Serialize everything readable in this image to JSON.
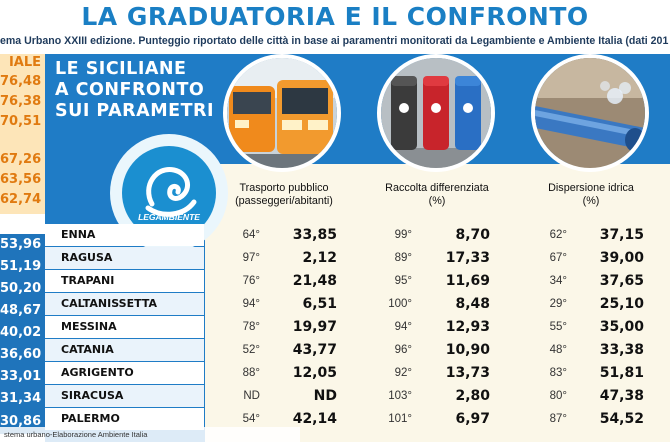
{
  "header": {
    "title": "LA GRADUATORIA E IL CONFRONTO",
    "subtitle": "ema Urbano XXIII edizione. Punteggio riportato delle città in base ai paramentri monitorati da Legambiente e Ambiente Italia (dati 201"
  },
  "left_column": {
    "header": "IALE",
    "top_values": [
      "76,48",
      "76,38",
      "70,51",
      "",
      "67,26",
      "63,56",
      "62,74"
    ],
    "bottom_values": [
      "53,96",
      "51,19",
      "50,20",
      "48,67",
      "40,02",
      "36,60",
      "33,01",
      "31,34",
      "30,86"
    ]
  },
  "panel": {
    "title_lines": [
      "LE SICILIANE",
      "A CONFRONTO",
      "SUI PARAMETRI"
    ],
    "logo_text": "LEGAMBIENTE"
  },
  "columns": [
    {
      "header_line1": "Trasporto pubblico",
      "header_line2": "(passeggeri/abitanti)",
      "photo": "bus-icon"
    },
    {
      "header_line1": "Raccolta differenziata",
      "header_line2": "(%)",
      "photo": "recycle-bins-icon"
    },
    {
      "header_line1": "Dispersione idrica",
      "header_line2": "(%)",
      "photo": "water-pipe-icon"
    }
  ],
  "rows": [
    {
      "city": "ENNA",
      "cells": [
        {
          "rank": "64°",
          "value": "33,85"
        },
        {
          "rank": "99°",
          "value": "8,70"
        },
        {
          "rank": "62°",
          "value": "37,15"
        }
      ]
    },
    {
      "city": "RAGUSA",
      "cells": [
        {
          "rank": "97°",
          "value": "2,12"
        },
        {
          "rank": "89°",
          "value": "17,33"
        },
        {
          "rank": "67°",
          "value": "39,00"
        }
      ]
    },
    {
      "city": "TRAPANI",
      "cells": [
        {
          "rank": "76°",
          "value": "21,48"
        },
        {
          "rank": "95°",
          "value": "11,69"
        },
        {
          "rank": "34°",
          "value": "37,65"
        }
      ]
    },
    {
      "city": "CALTANISSETTA",
      "cells": [
        {
          "rank": "94°",
          "value": "6,51"
        },
        {
          "rank": "100°",
          "value": "8,48"
        },
        {
          "rank": "29°",
          "value": "25,10"
        }
      ]
    },
    {
      "city": "MESSINA",
      "cells": [
        {
          "rank": "78°",
          "value": "19,97"
        },
        {
          "rank": "94°",
          "value": "12,93"
        },
        {
          "rank": "55°",
          "value": "35,00"
        }
      ]
    },
    {
      "city": "CATANIA",
      "cells": [
        {
          "rank": "52°",
          "value": "43,77"
        },
        {
          "rank": "96°",
          "value": "10,90"
        },
        {
          "rank": "48°",
          "value": "33,38"
        }
      ]
    },
    {
      "city": "AGRIGENTO",
      "cells": [
        {
          "rank": "88°",
          "value": "12,05"
        },
        {
          "rank": "92°",
          "value": "13,73"
        },
        {
          "rank": "83°",
          "value": "51,81"
        }
      ]
    },
    {
      "city": "SIRACUSA",
      "cells": [
        {
          "rank": "ND",
          "value": "ND"
        },
        {
          "rank": "103°",
          "value": "2,80"
        },
        {
          "rank": "80°",
          "value": "47,38"
        }
      ]
    },
    {
      "city": "PALERMO",
      "cells": [
        {
          "rank": "54°",
          "value": "42,14"
        },
        {
          "rank": "101°",
          "value": "6,97"
        },
        {
          "rank": "87°",
          "value": "54,52"
        }
      ]
    }
  ],
  "source": "stema urbano-Elaborazione Ambiente Italia",
  "colors": {
    "title": "#1a7fc4",
    "panel": "#1f7cc6",
    "orange": "#e07a10",
    "column_bg": "#fbf7e8"
  }
}
